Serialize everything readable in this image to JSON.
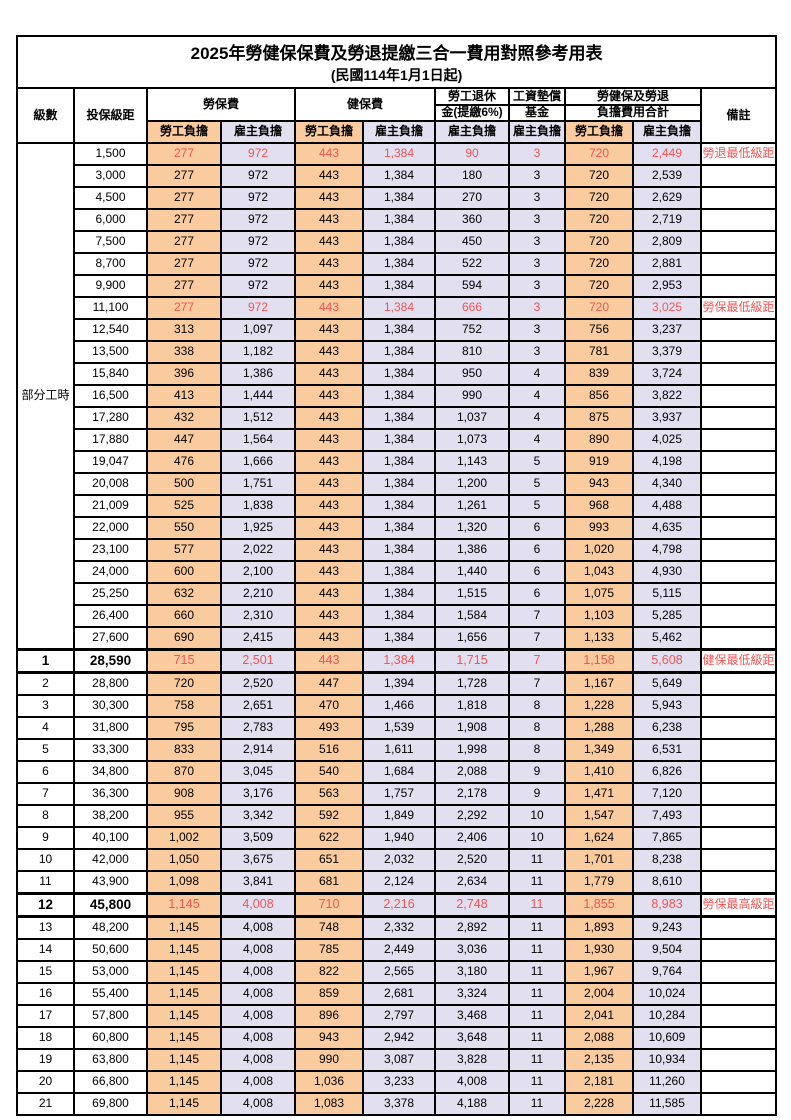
{
  "title": "2025年勞健保保費及勞退提繳三合一費用對照參考用表",
  "subtitle": "(民國114年1月1日起)",
  "colors": {
    "employee_burden_bg": "#F9CB9E",
    "employer_burden_bg": "#E2DFF1",
    "highlight_red": "#f25454",
    "border": "#000000"
  },
  "header": {
    "level": "級數",
    "bracket": "投保級距",
    "labor_insurance": "勞保費",
    "health_insurance": "健保費",
    "pension_line1": "勞工退休",
    "pension_line2": "金(提繳6%)",
    "wage_fund_line1": "工資墊償",
    "wage_fund_line2": "基金",
    "total_line1": "勞健保及勞退",
    "total_line2": "負擔費用合計",
    "remarks": "備註",
    "employee_burden": "勞工負擔",
    "employer_burden": "雇主負擔"
  },
  "part_time_label": "部分工時",
  "part_time_rowspan": 23,
  "rows": [
    {
      "level": "",
      "bracket": "1,500",
      "v": [
        "277",
        "972",
        "443",
        "1,384",
        "90",
        "3",
        "720",
        "2,449"
      ],
      "note": "勞退最低級距",
      "red": true,
      "emph": false
    },
    {
      "level": "",
      "bracket": "3,000",
      "v": [
        "277",
        "972",
        "443",
        "1,384",
        "180",
        "3",
        "720",
        "2,539"
      ],
      "note": "",
      "red": false,
      "emph": false
    },
    {
      "level": "",
      "bracket": "4,500",
      "v": [
        "277",
        "972",
        "443",
        "1,384",
        "270",
        "3",
        "720",
        "2,629"
      ],
      "note": "",
      "red": false,
      "emph": false
    },
    {
      "level": "",
      "bracket": "6,000",
      "v": [
        "277",
        "972",
        "443",
        "1,384",
        "360",
        "3",
        "720",
        "2,719"
      ],
      "note": "",
      "red": false,
      "emph": false
    },
    {
      "level": "",
      "bracket": "7,500",
      "v": [
        "277",
        "972",
        "443",
        "1,384",
        "450",
        "3",
        "720",
        "2,809"
      ],
      "note": "",
      "red": false,
      "emph": false
    },
    {
      "level": "",
      "bracket": "8,700",
      "v": [
        "277",
        "972",
        "443",
        "1,384",
        "522",
        "3",
        "720",
        "2,881"
      ],
      "note": "",
      "red": false,
      "emph": false
    },
    {
      "level": "",
      "bracket": "9,900",
      "v": [
        "277",
        "972",
        "443",
        "1,384",
        "594",
        "3",
        "720",
        "2,953"
      ],
      "note": "",
      "red": false,
      "emph": false
    },
    {
      "level": "",
      "bracket": "11,100",
      "v": [
        "277",
        "972",
        "443",
        "1,384",
        "666",
        "3",
        "720",
        "3,025"
      ],
      "note": "勞保最低級距",
      "red": true,
      "emph": false
    },
    {
      "level": "",
      "bracket": "12,540",
      "v": [
        "313",
        "1,097",
        "443",
        "1,384",
        "752",
        "3",
        "756",
        "3,237"
      ],
      "note": "",
      "red": false,
      "emph": false
    },
    {
      "level": "",
      "bracket": "13,500",
      "v": [
        "338",
        "1,182",
        "443",
        "1,384",
        "810",
        "3",
        "781",
        "3,379"
      ],
      "note": "",
      "red": false,
      "emph": false
    },
    {
      "level": "",
      "bracket": "15,840",
      "v": [
        "396",
        "1,386",
        "443",
        "1,384",
        "950",
        "4",
        "839",
        "3,724"
      ],
      "note": "",
      "red": false,
      "emph": false
    },
    {
      "level": "",
      "bracket": "16,500",
      "v": [
        "413",
        "1,444",
        "443",
        "1,384",
        "990",
        "4",
        "856",
        "3,822"
      ],
      "note": "",
      "red": false,
      "emph": false
    },
    {
      "level": "",
      "bracket": "17,280",
      "v": [
        "432",
        "1,512",
        "443",
        "1,384",
        "1,037",
        "4",
        "875",
        "3,937"
      ],
      "note": "",
      "red": false,
      "emph": false
    },
    {
      "level": "",
      "bracket": "17,880",
      "v": [
        "447",
        "1,564",
        "443",
        "1,384",
        "1,073",
        "4",
        "890",
        "4,025"
      ],
      "note": "",
      "red": false,
      "emph": false
    },
    {
      "level": "",
      "bracket": "19,047",
      "v": [
        "476",
        "1,666",
        "443",
        "1,384",
        "1,143",
        "5",
        "919",
        "4,198"
      ],
      "note": "",
      "red": false,
      "emph": false
    },
    {
      "level": "",
      "bracket": "20,008",
      "v": [
        "500",
        "1,751",
        "443",
        "1,384",
        "1,200",
        "5",
        "943",
        "4,340"
      ],
      "note": "",
      "red": false,
      "emph": false
    },
    {
      "level": "",
      "bracket": "21,009",
      "v": [
        "525",
        "1,838",
        "443",
        "1,384",
        "1,261",
        "5",
        "968",
        "4,488"
      ],
      "note": "",
      "red": false,
      "emph": false
    },
    {
      "level": "",
      "bracket": "22,000",
      "v": [
        "550",
        "1,925",
        "443",
        "1,384",
        "1,320",
        "6",
        "993",
        "4,635"
      ],
      "note": "",
      "red": false,
      "emph": false
    },
    {
      "level": "",
      "bracket": "23,100",
      "v": [
        "577",
        "2,022",
        "443",
        "1,384",
        "1,386",
        "6",
        "1,020",
        "4,798"
      ],
      "note": "",
      "red": false,
      "emph": false
    },
    {
      "level": "",
      "bracket": "24,000",
      "v": [
        "600",
        "2,100",
        "443",
        "1,384",
        "1,440",
        "6",
        "1,043",
        "4,930"
      ],
      "note": "",
      "red": false,
      "emph": false
    },
    {
      "level": "",
      "bracket": "25,250",
      "v": [
        "632",
        "2,210",
        "443",
        "1,384",
        "1,515",
        "6",
        "1,075",
        "5,115"
      ],
      "note": "",
      "red": false,
      "emph": false
    },
    {
      "level": "",
      "bracket": "26,400",
      "v": [
        "660",
        "2,310",
        "443",
        "1,384",
        "1,584",
        "7",
        "1,103",
        "5,285"
      ],
      "note": "",
      "red": false,
      "emph": false
    },
    {
      "level": "",
      "bracket": "27,600",
      "v": [
        "690",
        "2,415",
        "443",
        "1,384",
        "1,656",
        "7",
        "1,133",
        "5,462"
      ],
      "note": "",
      "red": false,
      "emph": false
    },
    {
      "level": "1",
      "bracket": "28,590",
      "v": [
        "715",
        "2,501",
        "443",
        "1,384",
        "1,715",
        "7",
        "1,158",
        "5,608"
      ],
      "note": "健保最低級距",
      "red": true,
      "emph": true
    },
    {
      "level": "2",
      "bracket": "28,800",
      "v": [
        "720",
        "2,520",
        "447",
        "1,394",
        "1,728",
        "7",
        "1,167",
        "5,649"
      ],
      "note": "",
      "red": false,
      "emph": false
    },
    {
      "level": "3",
      "bracket": "30,300",
      "v": [
        "758",
        "2,651",
        "470",
        "1,466",
        "1,818",
        "8",
        "1,228",
        "5,943"
      ],
      "note": "",
      "red": false,
      "emph": false
    },
    {
      "level": "4",
      "bracket": "31,800",
      "v": [
        "795",
        "2,783",
        "493",
        "1,539",
        "1,908",
        "8",
        "1,288",
        "6,238"
      ],
      "note": "",
      "red": false,
      "emph": false
    },
    {
      "level": "5",
      "bracket": "33,300",
      "v": [
        "833",
        "2,914",
        "516",
        "1,611",
        "1,998",
        "8",
        "1,349",
        "6,531"
      ],
      "note": "",
      "red": false,
      "emph": false
    },
    {
      "level": "6",
      "bracket": "34,800",
      "v": [
        "870",
        "3,045",
        "540",
        "1,684",
        "2,088",
        "9",
        "1,410",
        "6,826"
      ],
      "note": "",
      "red": false,
      "emph": false
    },
    {
      "level": "7",
      "bracket": "36,300",
      "v": [
        "908",
        "3,176",
        "563",
        "1,757",
        "2,178",
        "9",
        "1,471",
        "7,120"
      ],
      "note": "",
      "red": false,
      "emph": false
    },
    {
      "level": "8",
      "bracket": "38,200",
      "v": [
        "955",
        "3,342",
        "592",
        "1,849",
        "2,292",
        "10",
        "1,547",
        "7,493"
      ],
      "note": "",
      "red": false,
      "emph": false
    },
    {
      "level": "9",
      "bracket": "40,100",
      "v": [
        "1,002",
        "3,509",
        "622",
        "1,940",
        "2,406",
        "10",
        "1,624",
        "7,865"
      ],
      "note": "",
      "red": false,
      "emph": false
    },
    {
      "level": "10",
      "bracket": "42,000",
      "v": [
        "1,050",
        "3,675",
        "651",
        "2,032",
        "2,520",
        "11",
        "1,701",
        "8,238"
      ],
      "note": "",
      "red": false,
      "emph": false
    },
    {
      "level": "11",
      "bracket": "43,900",
      "v": [
        "1,098",
        "3,841",
        "681",
        "2,124",
        "2,634",
        "11",
        "1,779",
        "8,610"
      ],
      "note": "",
      "red": false,
      "emph": false
    },
    {
      "level": "12",
      "bracket": "45,800",
      "v": [
        "1,145",
        "4,008",
        "710",
        "2,216",
        "2,748",
        "11",
        "1,855",
        "8,983"
      ],
      "note": "勞保最高級距",
      "red": true,
      "emph": true
    },
    {
      "level": "13",
      "bracket": "48,200",
      "v": [
        "1,145",
        "4,008",
        "748",
        "2,332",
        "2,892",
        "11",
        "1,893",
        "9,243"
      ],
      "note": "",
      "red": false,
      "emph": false
    },
    {
      "level": "14",
      "bracket": "50,600",
      "v": [
        "1,145",
        "4,008",
        "785",
        "2,449",
        "3,036",
        "11",
        "1,930",
        "9,504"
      ],
      "note": "",
      "red": false,
      "emph": false
    },
    {
      "level": "15",
      "bracket": "53,000",
      "v": [
        "1,145",
        "4,008",
        "822",
        "2,565",
        "3,180",
        "11",
        "1,967",
        "9,764"
      ],
      "note": "",
      "red": false,
      "emph": false
    },
    {
      "level": "16",
      "bracket": "55,400",
      "v": [
        "1,145",
        "4,008",
        "859",
        "2,681",
        "3,324",
        "11",
        "2,004",
        "10,024"
      ],
      "note": "",
      "red": false,
      "emph": false
    },
    {
      "level": "17",
      "bracket": "57,800",
      "v": [
        "1,145",
        "4,008",
        "896",
        "2,797",
        "3,468",
        "11",
        "2,041",
        "10,284"
      ],
      "note": "",
      "red": false,
      "emph": false
    },
    {
      "level": "18",
      "bracket": "60,800",
      "v": [
        "1,145",
        "4,008",
        "943",
        "2,942",
        "3,648",
        "11",
        "2,088",
        "10,609"
      ],
      "note": "",
      "red": false,
      "emph": false
    },
    {
      "level": "19",
      "bracket": "63,800",
      "v": [
        "1,145",
        "4,008",
        "990",
        "3,087",
        "3,828",
        "11",
        "2,135",
        "10,934"
      ],
      "note": "",
      "red": false,
      "emph": false
    },
    {
      "level": "20",
      "bracket": "66,800",
      "v": [
        "1,145",
        "4,008",
        "1,036",
        "3,233",
        "4,008",
        "11",
        "2,181",
        "11,260"
      ],
      "note": "",
      "red": false,
      "emph": false
    },
    {
      "level": "21",
      "bracket": "69,800",
      "v": [
        "1,145",
        "4,008",
        "1,083",
        "3,378",
        "4,188",
        "11",
        "2,228",
        "11,585"
      ],
      "note": "",
      "red": false,
      "emph": false
    }
  ]
}
